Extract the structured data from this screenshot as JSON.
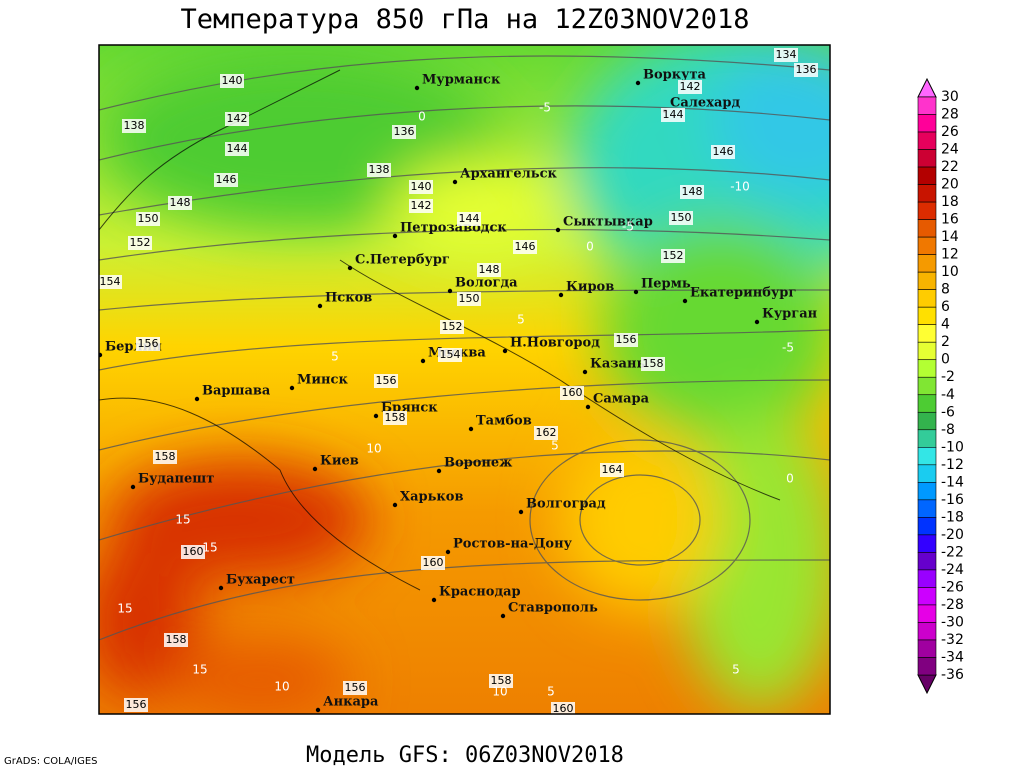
{
  "title": "Температура 850 гПа на 12Z03NOV2018",
  "model": "Модель GFS: 06Z03NOV2018",
  "credit": "GrADS: COLA/IGES",
  "colorbar": {
    "labels": [
      30,
      28,
      26,
      24,
      22,
      20,
      18,
      16,
      14,
      12,
      10,
      8,
      6,
      4,
      2,
      0,
      -2,
      -4,
      -6,
      -8,
      -10,
      -12,
      -14,
      -16,
      -18,
      -20,
      -22,
      -24,
      -26,
      -28,
      -30,
      -32,
      -34,
      -36
    ],
    "colors": [
      "#ff33cc",
      "#ff0099",
      "#e6005c",
      "#cc0033",
      "#b30000",
      "#c81400",
      "#dc2c00",
      "#e65a00",
      "#f07800",
      "#f59a00",
      "#f8b400",
      "#ffcc00",
      "#ffe000",
      "#ffff33",
      "#e6ff33",
      "#b3ff33",
      "#80e633",
      "#4dcc33",
      "#33b34d",
      "#33cc99",
      "#33e6e6",
      "#1accf0",
      "#0099ff",
      "#0066ff",
      "#0033ff",
      "#3300ff",
      "#6600cc",
      "#9900ff",
      "#cc00ff",
      "#e600e6",
      "#cc00cc",
      "#a000a0",
      "#800080"
    ],
    "top_color": "#ff66ff",
    "bottom_color": "#660066"
  },
  "map": {
    "cities": [
      "Мурманск",
      "Архангельск",
      "Петрозаводск",
      "С.Петербург",
      "Псков",
      "Вологда",
      "Москва",
      "Н.Новгород",
      "Киров",
      "Сыктывкар",
      "Пермь",
      "Екатеринбург",
      "Курган",
      "Воркута",
      "Салехард",
      "Казань",
      "Самара",
      "Тамбов",
      "Брянск",
      "Минск",
      "Варшава",
      "Берлин",
      "Киев",
      "Воронеж",
      "Харьков",
      "Волгоград",
      "Бухарест",
      "Будапешт",
      "Ростов-на-Дону",
      "Краснодар",
      "Ставрополь",
      "Анкара"
    ],
    "contour_labels": [
      134,
      136,
      140,
      142,
      138,
      142,
      144,
      144,
      146,
      136,
      138,
      146,
      140,
      148,
      148,
      142,
      144,
      150,
      150,
      152,
      146,
      152,
      148,
      150,
      154,
      152,
      156,
      156,
      154,
      158,
      156,
      160,
      158,
      162,
      158,
      164,
      160,
      160,
      158,
      156,
      158,
      156,
      160
    ],
    "isotherm_labels": [
      0,
      -5,
      -10,
      -5,
      0,
      5,
      -5,
      5,
      10,
      5,
      0,
      15,
      15,
      15,
      15,
      10,
      5,
      5,
      10
    ]
  }
}
